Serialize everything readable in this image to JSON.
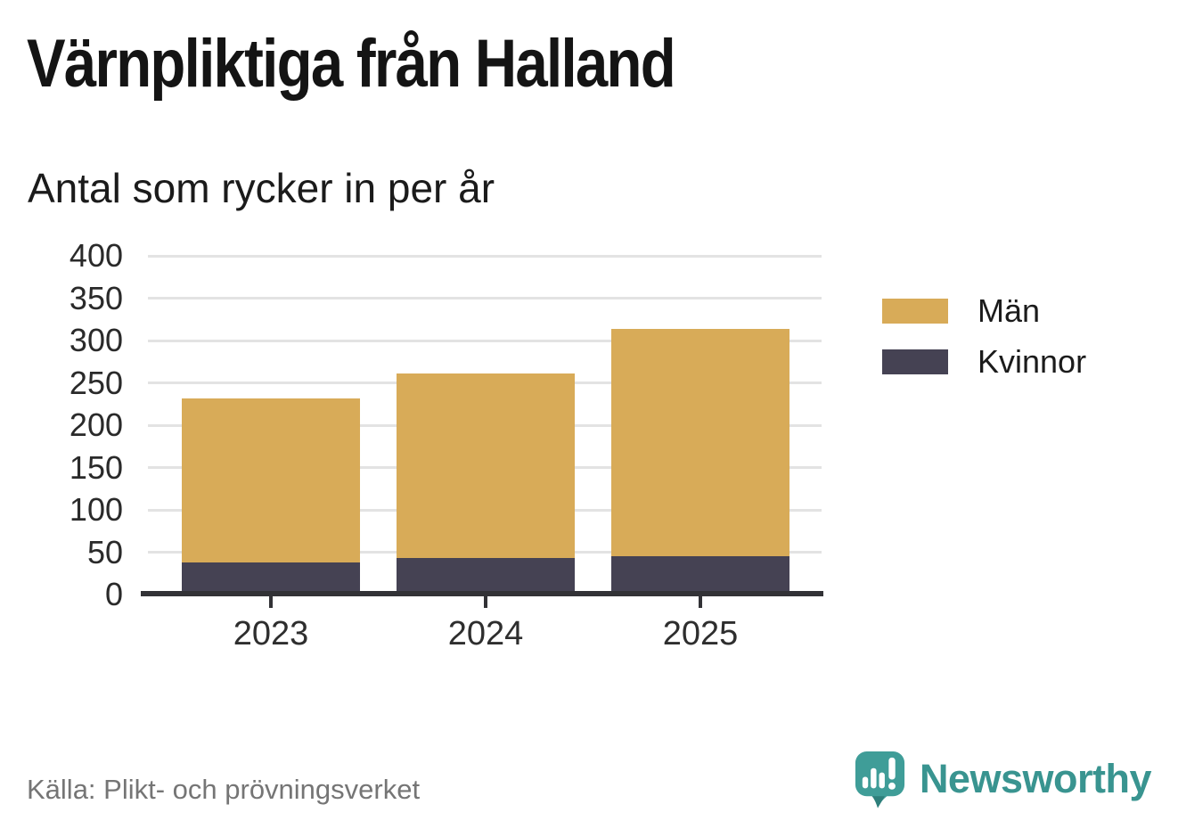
{
  "header": {
    "title": "Värnpliktiga från Halland",
    "subtitle": "Antal som rycker in per år"
  },
  "chart_data": {
    "type": "bar",
    "stacked": true,
    "categories": [
      "2023",
      "2024",
      "2025"
    ],
    "series": [
      {
        "name": "Män",
        "color": "#d8ab58",
        "values": [
          194,
          218,
          269
        ]
      },
      {
        "name": "Kvinnor",
        "color": "#454253",
        "values": [
          38,
          43,
          45
        ]
      }
    ],
    "totals": [
      232,
      261,
      314
    ],
    "title": "Värnpliktiga från Halland",
    "subtitle": "Antal som rycker in per år",
    "xlabel": "",
    "ylabel": "",
    "ylim": [
      0,
      400
    ],
    "ytick_step": 50,
    "yticks": [
      "400",
      "350",
      "300",
      "250",
      "200",
      "150",
      "100",
      "50",
      "0"
    ],
    "grid": true,
    "legend_position": "right"
  },
  "legend": {
    "items": [
      {
        "label": "Män",
        "color": "#d8ab58"
      },
      {
        "label": "Kvinnor",
        "color": "#454253"
      }
    ]
  },
  "footer": {
    "source": "Källa: Plikt- och prövningsverket",
    "brand": "Newsworthy"
  },
  "colors": {
    "men": "#d8ab58",
    "women": "#454253",
    "axis": "#323236",
    "gridline": "#e3e3e3",
    "brand_teal": "#399490",
    "source_text": "#757575"
  }
}
